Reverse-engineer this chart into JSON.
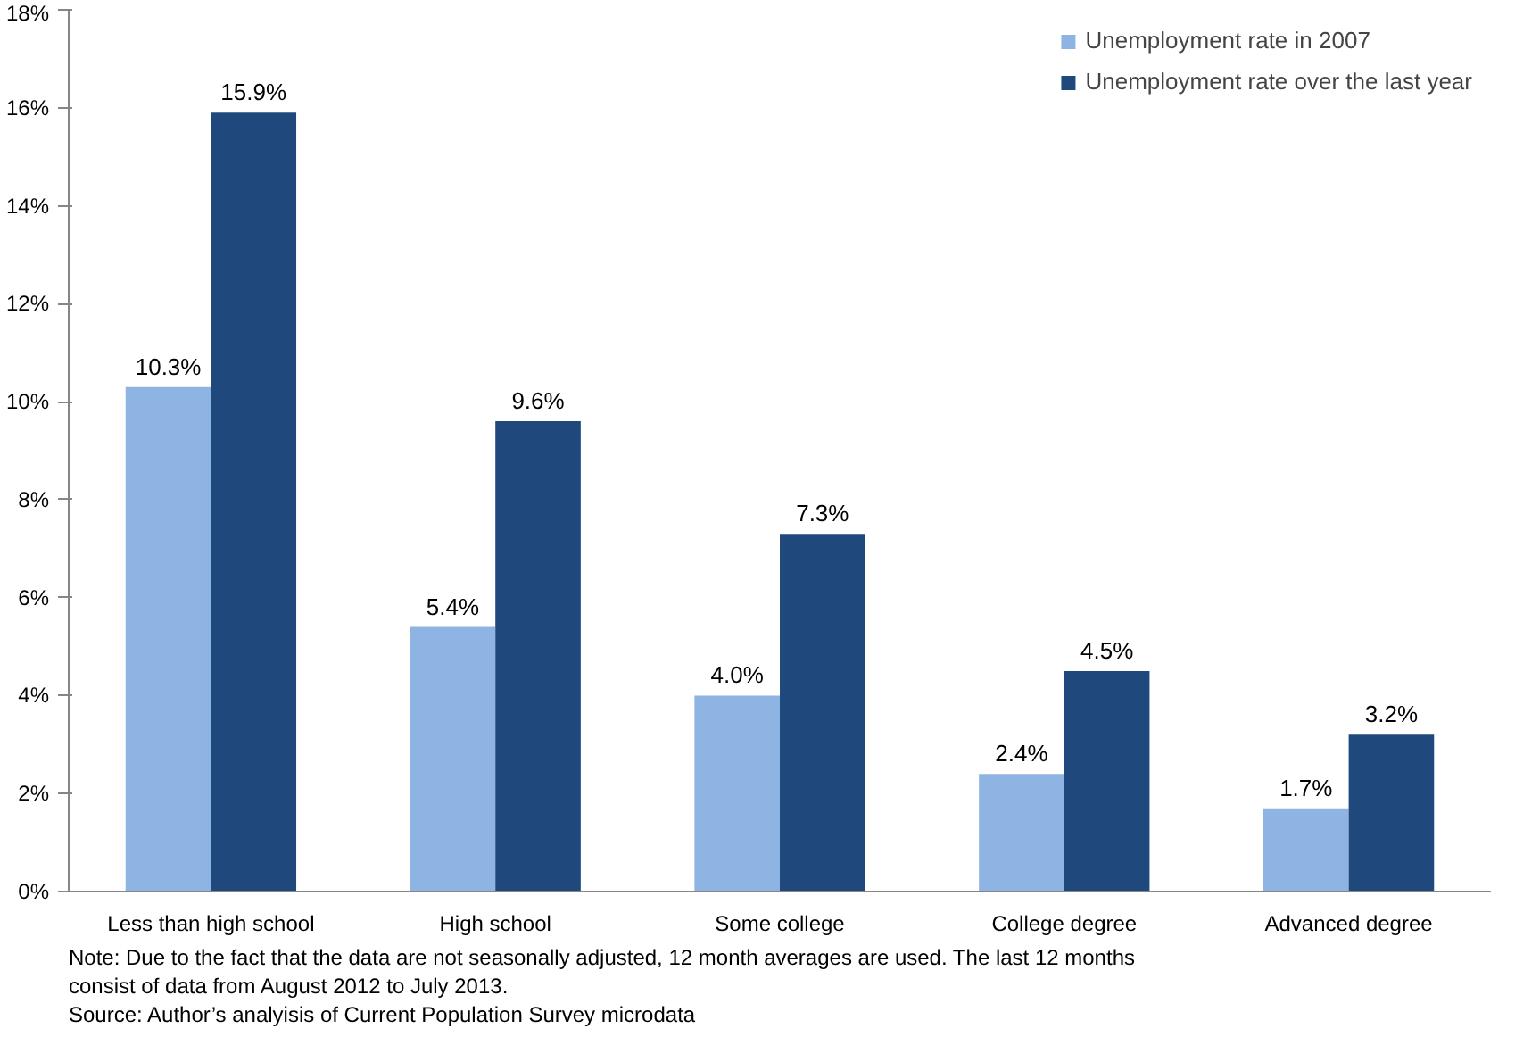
{
  "chart_data": {
    "type": "bar",
    "categories": [
      "Less than high school",
      "High school",
      "Some college",
      "College degree",
      "Advanced degree"
    ],
    "series": [
      {
        "name": "Unemployment rate in 2007",
        "color": "#8eb4e3",
        "values": [
          10.3,
          5.4,
          4.0,
          2.4,
          1.7
        ],
        "value_labels": [
          "10.3%",
          "5.4%",
          "4.0%",
          "2.4%",
          "1.7%"
        ]
      },
      {
        "name": "Unemployment rate over the last year",
        "color": "#1f497d",
        "values": [
          15.9,
          9.6,
          7.3,
          4.5,
          3.2
        ],
        "value_labels": [
          "15.9%",
          "9.6%",
          "7.3%",
          "4.5%",
          "3.2%"
        ]
      }
    ],
    "ylim": [
      0,
      18
    ],
    "yticks": [
      {
        "value": 0,
        "label": "0%"
      },
      {
        "value": 2,
        "label": "2%"
      },
      {
        "value": 4,
        "label": "4%"
      },
      {
        "value": 6,
        "label": "6%"
      },
      {
        "value": 8,
        "label": "8%"
      },
      {
        "value": 10,
        "label": "10%"
      },
      {
        "value": 12,
        "label": "12%"
      },
      {
        "value": 14,
        "label": "14%"
      },
      {
        "value": 16,
        "label": "16%"
      },
      {
        "value": 18,
        "label": "18%"
      }
    ],
    "grid": false,
    "legend": "top right",
    "annotations": [
      "Note: Due to the fact that the data are not seasonally adjusted, 12 month averages are used. The last 12 months consist of data from August 2012 to July 2013.",
      "Source: Author’s analyisis of Current Population Survey microdata"
    ]
  }
}
